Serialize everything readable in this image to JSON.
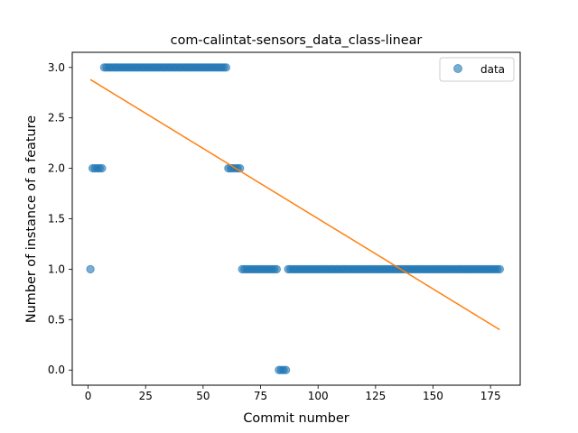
{
  "chart_data": {
    "type": "scatter",
    "title": "com-calintat-sensors_data_class-linear",
    "xlabel": "Commit number",
    "ylabel": "Number of instance of a feature",
    "xlim": [
      -6.9,
      187.9
    ],
    "ylim": [
      -0.15,
      3.15
    ],
    "xticks": [
      0,
      25,
      50,
      75,
      100,
      125,
      150,
      175
    ],
    "yticks": [
      0.0,
      0.5,
      1.0,
      1.5,
      2.0,
      2.5,
      3.0
    ],
    "xtick_labels": [
      "0",
      "25",
      "50",
      "75",
      "100",
      "125",
      "150",
      "175"
    ],
    "ytick_labels": [
      "0.0",
      "0.5",
      "1.0",
      "1.5",
      "2.0",
      "2.5",
      "3.0"
    ],
    "grid": false,
    "legend": {
      "placement": "top-right",
      "entries": [
        "data"
      ]
    },
    "colors": {
      "points": "#1f77b4",
      "fit": "#ff7f0e"
    },
    "series": [
      {
        "name": "data",
        "kind": "points",
        "segments": [
          {
            "x_start": 1,
            "x_end": 1,
            "y": 1
          },
          {
            "x_start": 2,
            "x_end": 6,
            "y": 2
          },
          {
            "x_start": 7,
            "x_end": 60,
            "y": 3
          },
          {
            "x_start": 61,
            "x_end": 66,
            "y": 2
          },
          {
            "x_start": 67,
            "x_end": 82,
            "y": 1
          },
          {
            "x_start": 83,
            "x_end": 86,
            "y": 0
          },
          {
            "x_start": 87,
            "x_end": 179,
            "y": 1
          }
        ]
      },
      {
        "kind": "line",
        "x": [
          1,
          179
        ],
        "y": [
          2.88,
          0.4
        ]
      }
    ]
  }
}
